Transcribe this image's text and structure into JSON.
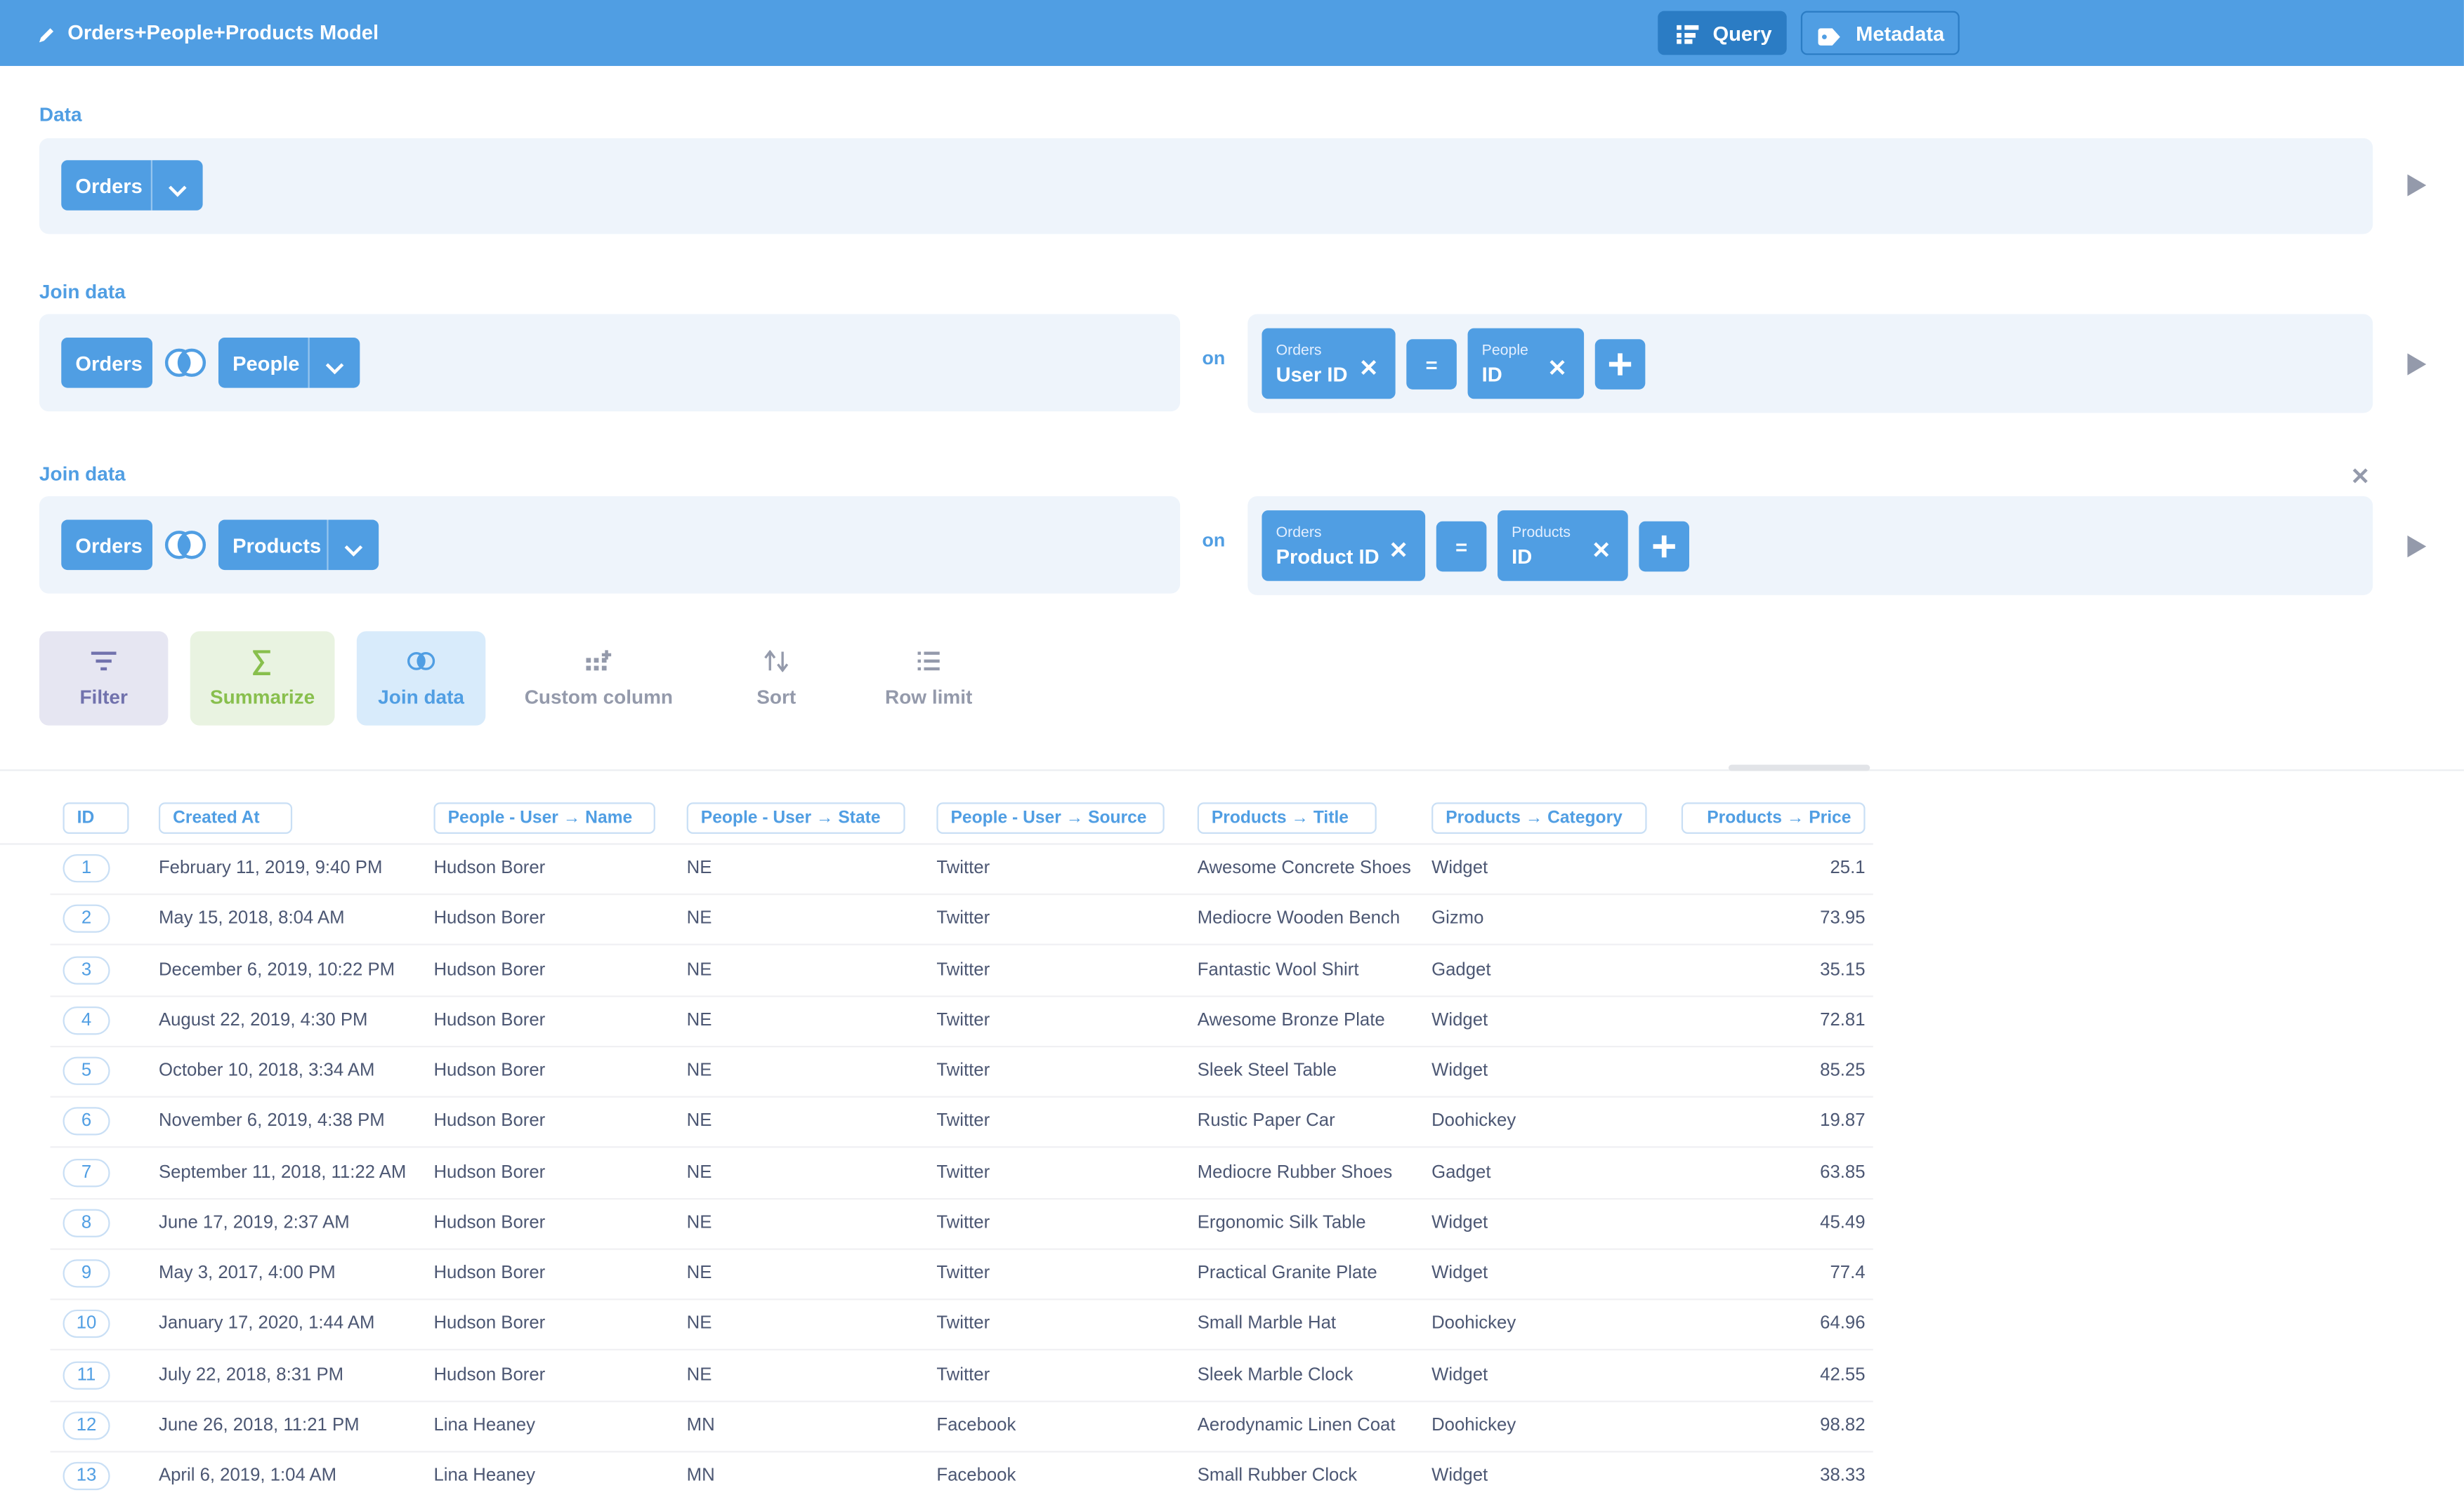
{
  "header": {
    "title": "Orders+People+Products Model",
    "buttons": [
      "Query",
      "Metadata"
    ]
  },
  "data_step": {
    "label": "Data",
    "table": "Orders"
  },
  "joins": [
    {
      "label": "Join data",
      "left": "Orders",
      "right": "People",
      "on": "on",
      "left_field": {
        "table": "Orders",
        "field": "User ID"
      },
      "operator": "=",
      "right_field": {
        "table": "People",
        "field": "ID"
      }
    },
    {
      "label": "Join data",
      "left": "Orders",
      "right": "Products",
      "on": "on",
      "left_field": {
        "table": "Orders",
        "field": "Product ID"
      },
      "operator": "=",
      "right_field": {
        "table": "Products",
        "field": "ID"
      }
    }
  ],
  "actions": [
    "Filter",
    "Summarize",
    "Join data",
    "Custom column",
    "Sort",
    "Row limit"
  ],
  "table": {
    "columns": [
      "ID",
      "Created At",
      "People - User → Name",
      "People - User → State",
      "People - User → Source",
      "Products → Title",
      "Products → Category",
      "Products → Price"
    ],
    "rows": [
      [
        1,
        "February 11, 2019, 9:40 PM",
        "Hudson Borer",
        "NE",
        "Twitter",
        "Awesome Concrete Shoes",
        "Widget",
        25.1
      ],
      [
        2,
        "May 15, 2018, 8:04 AM",
        "Hudson Borer",
        "NE",
        "Twitter",
        "Mediocre Wooden Bench",
        "Gizmo",
        73.95
      ],
      [
        3,
        "December 6, 2019, 10:22 PM",
        "Hudson Borer",
        "NE",
        "Twitter",
        "Fantastic Wool Shirt",
        "Gadget",
        35.15
      ],
      [
        4,
        "August 22, 2019, 4:30 PM",
        "Hudson Borer",
        "NE",
        "Twitter",
        "Awesome Bronze Plate",
        "Widget",
        72.81
      ],
      [
        5,
        "October 10, 2018, 3:34 AM",
        "Hudson Borer",
        "NE",
        "Twitter",
        "Sleek Steel Table",
        "Widget",
        85.25
      ],
      [
        6,
        "November 6, 2019, 4:38 PM",
        "Hudson Borer",
        "NE",
        "Twitter",
        "Rustic Paper Car",
        "Doohickey",
        19.87
      ],
      [
        7,
        "September 11, 2018, 11:22 AM",
        "Hudson Borer",
        "NE",
        "Twitter",
        "Mediocre Rubber Shoes",
        "Gadget",
        63.85
      ],
      [
        8,
        "June 17, 2019, 2:37 AM",
        "Hudson Borer",
        "NE",
        "Twitter",
        "Ergonomic Silk Table",
        "Widget",
        45.49
      ],
      [
        9,
        "May 3, 2017, 4:00 PM",
        "Hudson Borer",
        "NE",
        "Twitter",
        "Practical Granite Plate",
        "Widget",
        77.4
      ],
      [
        10,
        "January 17, 2020, 1:44 AM",
        "Hudson Borer",
        "NE",
        "Twitter",
        "Small Marble Hat",
        "Doohickey",
        64.96
      ],
      [
        11,
        "July 22, 2018, 8:31 PM",
        "Hudson Borer",
        "NE",
        "Twitter",
        "Sleek Marble Clock",
        "Widget",
        42.55
      ],
      [
        12,
        "June 26, 2018, 11:21 PM",
        "Lina Heaney",
        "MN",
        "Facebook",
        "Aerodynamic Linen Coat",
        "Doohickey",
        98.82
      ],
      [
        13,
        "April 6, 2019, 1:04 AM",
        "Lina Heaney",
        "MN",
        "Facebook",
        "Small Rubber Clock",
        "Widget",
        38.33
      ]
    ]
  }
}
